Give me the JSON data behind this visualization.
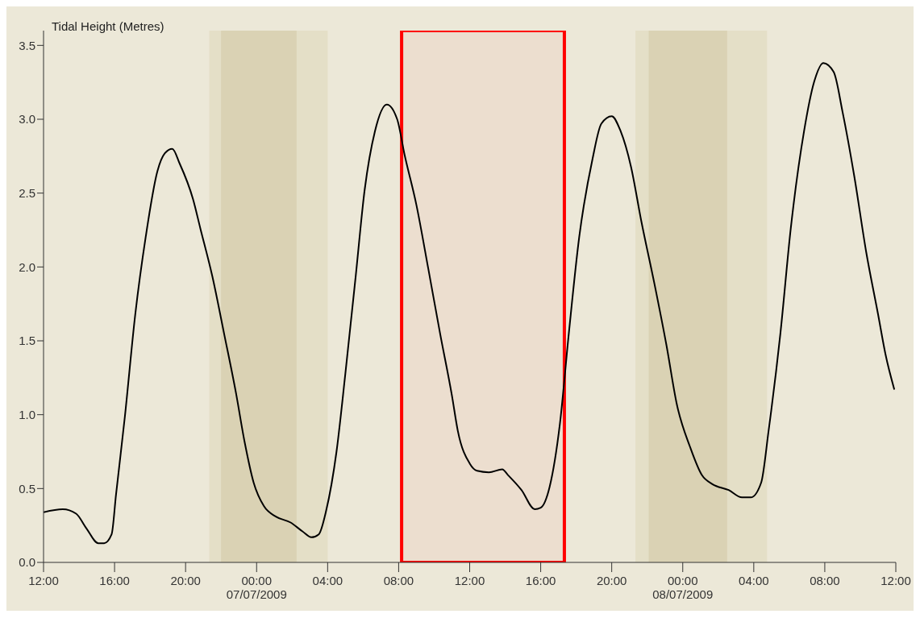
{
  "chart_data": {
    "type": "line",
    "ylabel": "Tidal Height (Metres)",
    "x": [
      "2009-07-06T12:00",
      "2009-07-06T13:05",
      "2009-07-06T13:50",
      "2009-07-06T14:25",
      "2009-07-06T15:05",
      "2009-07-06T15:25",
      "2009-07-06T15:50",
      "2009-07-06T16:05",
      "2009-07-06T16:35",
      "2009-07-06T17:10",
      "2009-07-06T17:45",
      "2009-07-06T18:25",
      "2009-07-06T18:50",
      "2009-07-06T19:15",
      "2009-07-06T19:40",
      "2009-07-06T20:25",
      "2009-07-06T20:50",
      "2009-07-06T21:30",
      "2009-07-06T22:10",
      "2009-07-06T22:50",
      "2009-07-06T23:20",
      "2009-07-06T23:50",
      "2009-07-07T00:25",
      "2009-07-07T01:05",
      "2009-07-07T01:55",
      "2009-07-07T02:35",
      "2009-07-07T03:05",
      "2009-07-07T03:30",
      "2009-07-07T03:55",
      "2009-07-07T04:30",
      "2009-07-07T05:00",
      "2009-07-07T05:35",
      "2009-07-07T06:05",
      "2009-07-07T06:40",
      "2009-07-07T07:20",
      "2009-07-07T07:55",
      "2009-07-07T08:20",
      "2009-07-07T09:00",
      "2009-07-07T09:40",
      "2009-07-07T10:20",
      "2009-07-07T11:00",
      "2009-07-07T11:20",
      "2009-07-07T12:00",
      "2009-07-07T12:25",
      "2009-07-07T13:05",
      "2009-07-07T13:50",
      "2009-07-07T14:10",
      "2009-07-07T14:55",
      "2009-07-07T15:40",
      "2009-07-07T16:00",
      "2009-07-07T16:30",
      "2009-07-07T17:05",
      "2009-07-07T17:35",
      "2009-07-07T18:10",
      "2009-07-07T18:55",
      "2009-07-07T19:25",
      "2009-07-07T20:00",
      "2009-07-07T20:30",
      "2009-07-07T21:05",
      "2009-07-07T21:40",
      "2009-07-07T22:25",
      "2009-07-07T23:05",
      "2009-07-07T23:40",
      "2009-07-08T00:25",
      "2009-07-08T01:05",
      "2009-07-08T01:40",
      "2009-07-08T02:35",
      "2009-07-08T03:20",
      "2009-07-08T03:50",
      "2009-07-08T04:25",
      "2009-07-08T04:50",
      "2009-07-08T05:30",
      "2009-07-08T06:05",
      "2009-07-08T06:50",
      "2009-07-08T07:25",
      "2009-07-08T07:55",
      "2009-07-08T08:30",
      "2009-07-08T09:00",
      "2009-07-08T09:40",
      "2009-07-08T10:20",
      "2009-07-08T11:00",
      "2009-07-08T11:25",
      "2009-07-08T11:55"
    ],
    "series": [
      {
        "color": "#000000",
        "values": [
          0.34,
          0.36,
          0.33,
          0.23,
          0.13,
          0.13,
          0.19,
          0.46,
          0.99,
          1.68,
          2.2,
          2.65,
          2.77,
          2.8,
          2.7,
          2.46,
          2.26,
          1.94,
          1.55,
          1.15,
          0.81,
          0.54,
          0.38,
          0.31,
          0.27,
          0.21,
          0.17,
          0.19,
          0.35,
          0.75,
          1.28,
          1.94,
          2.52,
          2.92,
          3.1,
          3.0,
          2.76,
          2.42,
          1.99,
          1.55,
          1.13,
          0.89,
          0.67,
          0.62,
          0.61,
          0.63,
          0.59,
          0.49,
          0.36,
          0.37,
          0.51,
          0.94,
          1.55,
          2.2,
          2.73,
          2.97,
          3.02,
          2.92,
          2.68,
          2.31,
          1.88,
          1.47,
          1.07,
          0.78,
          0.59,
          0.53,
          0.49,
          0.44,
          0.44,
          0.54,
          0.89,
          1.55,
          2.26,
          2.92,
          3.26,
          3.38,
          3.32,
          3.05,
          2.61,
          2.1,
          1.68,
          1.41,
          1.17
        ]
      }
    ],
    "xlim": [
      "2009-07-06T12:00",
      "2009-07-08T12:00"
    ],
    "xticks": [
      {
        "value": "2009-07-06T12:00",
        "label": "12:00"
      },
      {
        "value": "2009-07-06T16:00",
        "label": "16:00"
      },
      {
        "value": "2009-07-06T20:00",
        "label": "20:00"
      },
      {
        "value": "2009-07-07T00:00",
        "label": "00:00\n07/07/2009"
      },
      {
        "value": "2009-07-07T04:00",
        "label": "04:00"
      },
      {
        "value": "2009-07-07T08:00",
        "label": "08:00"
      },
      {
        "value": "2009-07-07T12:00",
        "label": "12:00"
      },
      {
        "value": "2009-07-07T16:00",
        "label": "16:00"
      },
      {
        "value": "2009-07-07T20:00",
        "label": "20:00"
      },
      {
        "value": "2009-07-08T00:00",
        "label": "00:00\n08/07/2009"
      },
      {
        "value": "2009-07-08T04:00",
        "label": "04:00"
      },
      {
        "value": "2009-07-08T08:00",
        "label": "08:00"
      },
      {
        "value": "2009-07-08T12:00",
        "label": "12:00"
      }
    ],
    "ylim": [
      0,
      3.6
    ],
    "yticks": [
      {
        "value": 0,
        "label": "0.0"
      },
      0.5,
      {
        "value": 1,
        "label": "1.0"
      },
      1.5,
      {
        "value": 2,
        "label": "2.0"
      },
      2.5,
      {
        "value": 3,
        "label": "3.0"
      },
      3.5
    ],
    "bands": [
      {
        "axis": "x",
        "from": "2009-07-06T21:20",
        "to": "2009-07-07T04:00",
        "color": "#e0d9bd"
      },
      {
        "axis": "x",
        "from": "2009-07-06T22:00",
        "to": "2009-07-07T02:15",
        "color": "#d3caa6"
      },
      {
        "axis": "x",
        "from": "2009-07-07T21:20",
        "to": "2009-07-08T04:45",
        "color": "#e0d9bd"
      },
      {
        "axis": "x",
        "from": "2009-07-07T22:05",
        "to": "2009-07-08T02:30",
        "color": "#d3caa6"
      },
      {
        "axis": "x",
        "from": "2009-07-07T08:10",
        "to": "2009-07-07T17:20",
        "color": "#ff0000"
      }
    ]
  }
}
